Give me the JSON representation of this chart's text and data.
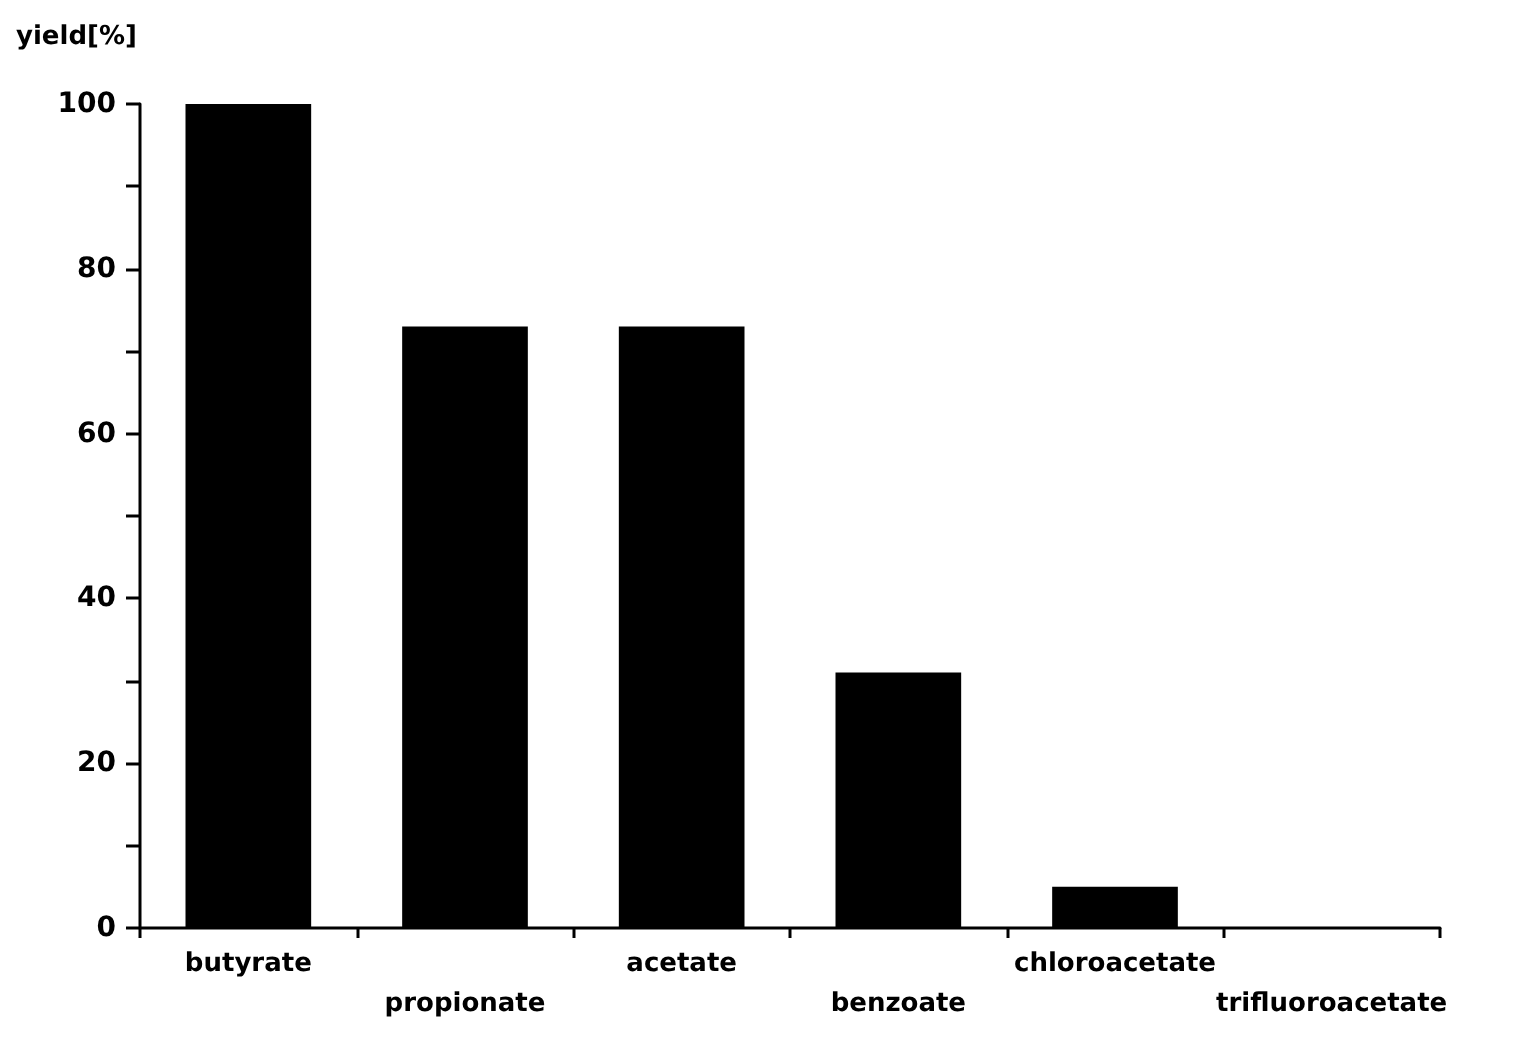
{
  "chart_data": {
    "type": "bar",
    "ylabel": "yield[%]",
    "categories": [
      "butyrate",
      "propionate",
      "acetate",
      "benzoate",
      "chloroacetate",
      "trifluoroacetate"
    ],
    "values": [
      100,
      73,
      73,
      31,
      5,
      0
    ],
    "color": "#000000",
    "ylim": [
      0,
      100
    ],
    "yticks": [
      0,
      {
        "value": 10,
        "label": null
      },
      20,
      {
        "value": 30,
        "label": null
      },
      40,
      {
        "value": 50,
        "label": null
      },
      60,
      {
        "value": 70,
        "label": null
      },
      80,
      {
        "value": 90,
        "label": null
      },
      100
    ],
    "grid": false
  }
}
